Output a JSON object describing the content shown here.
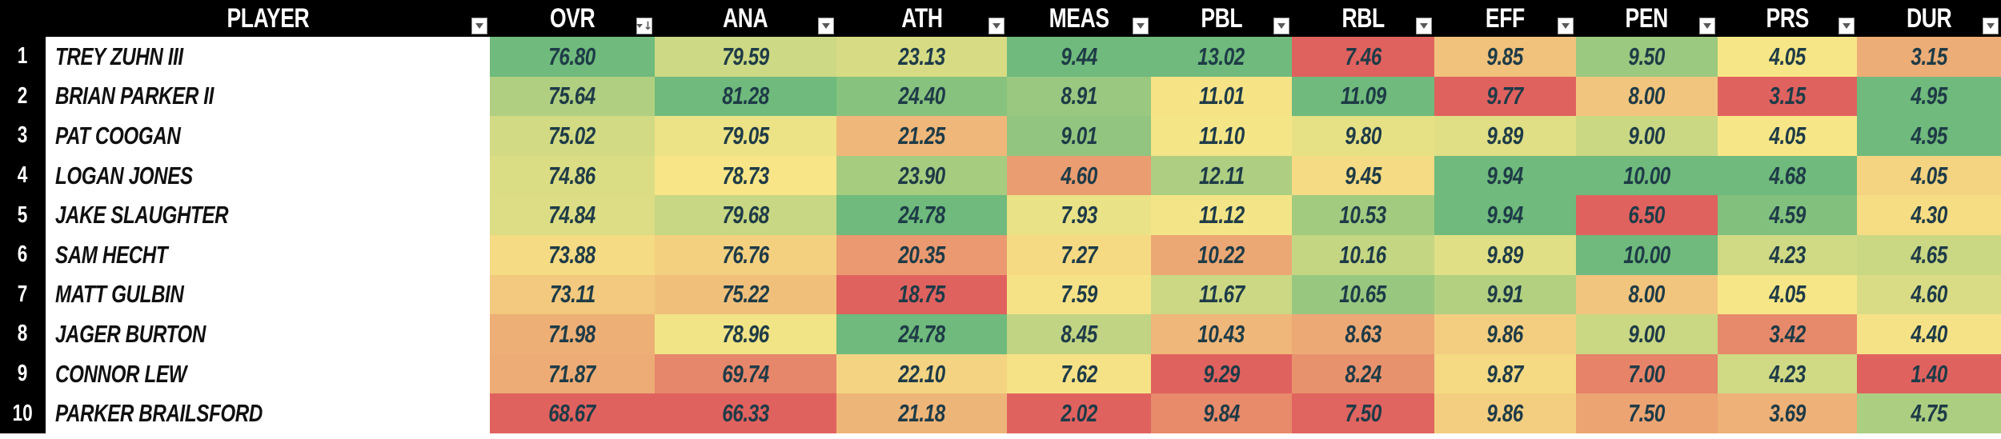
{
  "header": {
    "player_label": "PLAYER",
    "columns": [
      {
        "key": "ovr",
        "label": "OVR",
        "icon": "filter-sort-descending"
      },
      {
        "key": "ana",
        "label": "ANA",
        "icon": "filter-dropdown"
      },
      {
        "key": "ath",
        "label": "ATH",
        "icon": "filter-dropdown"
      },
      {
        "key": "meas",
        "label": "MEAS",
        "icon": "filter-dropdown"
      },
      {
        "key": "pbl",
        "label": "PBL",
        "icon": "filter-dropdown"
      },
      {
        "key": "rbl",
        "label": "RBL",
        "icon": "filter-dropdown"
      },
      {
        "key": "eff",
        "label": "EFF",
        "icon": "filter-dropdown"
      },
      {
        "key": "pen",
        "label": "PEN",
        "icon": "filter-dropdown"
      },
      {
        "key": "prs",
        "label": "PRS",
        "icon": "filter-dropdown"
      },
      {
        "key": "dur",
        "label": "DUR",
        "icon": "filter-dropdown"
      }
    ]
  },
  "players": [
    {
      "rank": "1",
      "name": "TREY ZUHN III",
      "values": [
        "76.80",
        "79.59",
        "23.13",
        "9.44",
        "13.02",
        "7.46",
        "9.85",
        "9.50",
        "4.05",
        "3.15"
      ]
    },
    {
      "rank": "2",
      "name": "BRIAN PARKER II",
      "values": [
        "75.64",
        "81.28",
        "24.40",
        "8.91",
        "11.01",
        "11.09",
        "9.77",
        "8.00",
        "3.15",
        "4.95"
      ]
    },
    {
      "rank": "3",
      "name": "PAT COOGAN",
      "values": [
        "75.02",
        "79.05",
        "21.25",
        "9.01",
        "11.10",
        "9.80",
        "9.89",
        "9.00",
        "4.05",
        "4.95"
      ]
    },
    {
      "rank": "4",
      "name": "LOGAN JONES",
      "values": [
        "74.86",
        "78.73",
        "23.90",
        "4.60",
        "12.11",
        "9.45",
        "9.94",
        "10.00",
        "4.68",
        "4.05"
      ]
    },
    {
      "rank": "5",
      "name": "JAKE SLAUGHTER",
      "values": [
        "74.84",
        "79.68",
        "24.78",
        "7.93",
        "11.12",
        "10.53",
        "9.94",
        "6.50",
        "4.59",
        "4.30"
      ]
    },
    {
      "rank": "6",
      "name": "SAM HECHT",
      "values": [
        "73.88",
        "76.76",
        "20.35",
        "7.27",
        "10.22",
        "10.16",
        "9.89",
        "10.00",
        "4.23",
        "4.65"
      ]
    },
    {
      "rank": "7",
      "name": "MATT GULBIN",
      "values": [
        "73.11",
        "75.22",
        "18.75",
        "7.59",
        "11.67",
        "10.65",
        "9.91",
        "8.00",
        "4.05",
        "4.60"
      ]
    },
    {
      "rank": "8",
      "name": "JAGER BURTON",
      "values": [
        "71.98",
        "78.96",
        "24.78",
        "8.45",
        "10.43",
        "8.63",
        "9.86",
        "9.00",
        "3.42",
        "4.40"
      ]
    },
    {
      "rank": "9",
      "name": "CONNOR LEW",
      "values": [
        "71.87",
        "69.74",
        "22.10",
        "7.62",
        "9.29",
        "8.24",
        "9.87",
        "7.00",
        "4.23",
        "1.40"
      ]
    },
    {
      "rank": "10",
      "name": "PARKER BRAILSFORD",
      "values": [
        "68.67",
        "66.33",
        "21.18",
        "2.02",
        "9.84",
        "7.50",
        "9.86",
        "7.50",
        "3.69",
        "4.75"
      ]
    }
  ],
  "heatmap": {
    "type": "3-color-scale",
    "midpoint": "50th-percentile",
    "min_color": "#E0625F",
    "mid_color": "#F7E687",
    "max_color": "#6FBA7C"
  },
  "colors": {
    "header_bg": "#000000",
    "header_text": "#FFFFFF",
    "rank_bg": "#000000",
    "rank_text": "#FFFFFF",
    "name_bg": "#FFFFFF",
    "name_text": "#101010",
    "value_text": "#1E3B47"
  }
}
